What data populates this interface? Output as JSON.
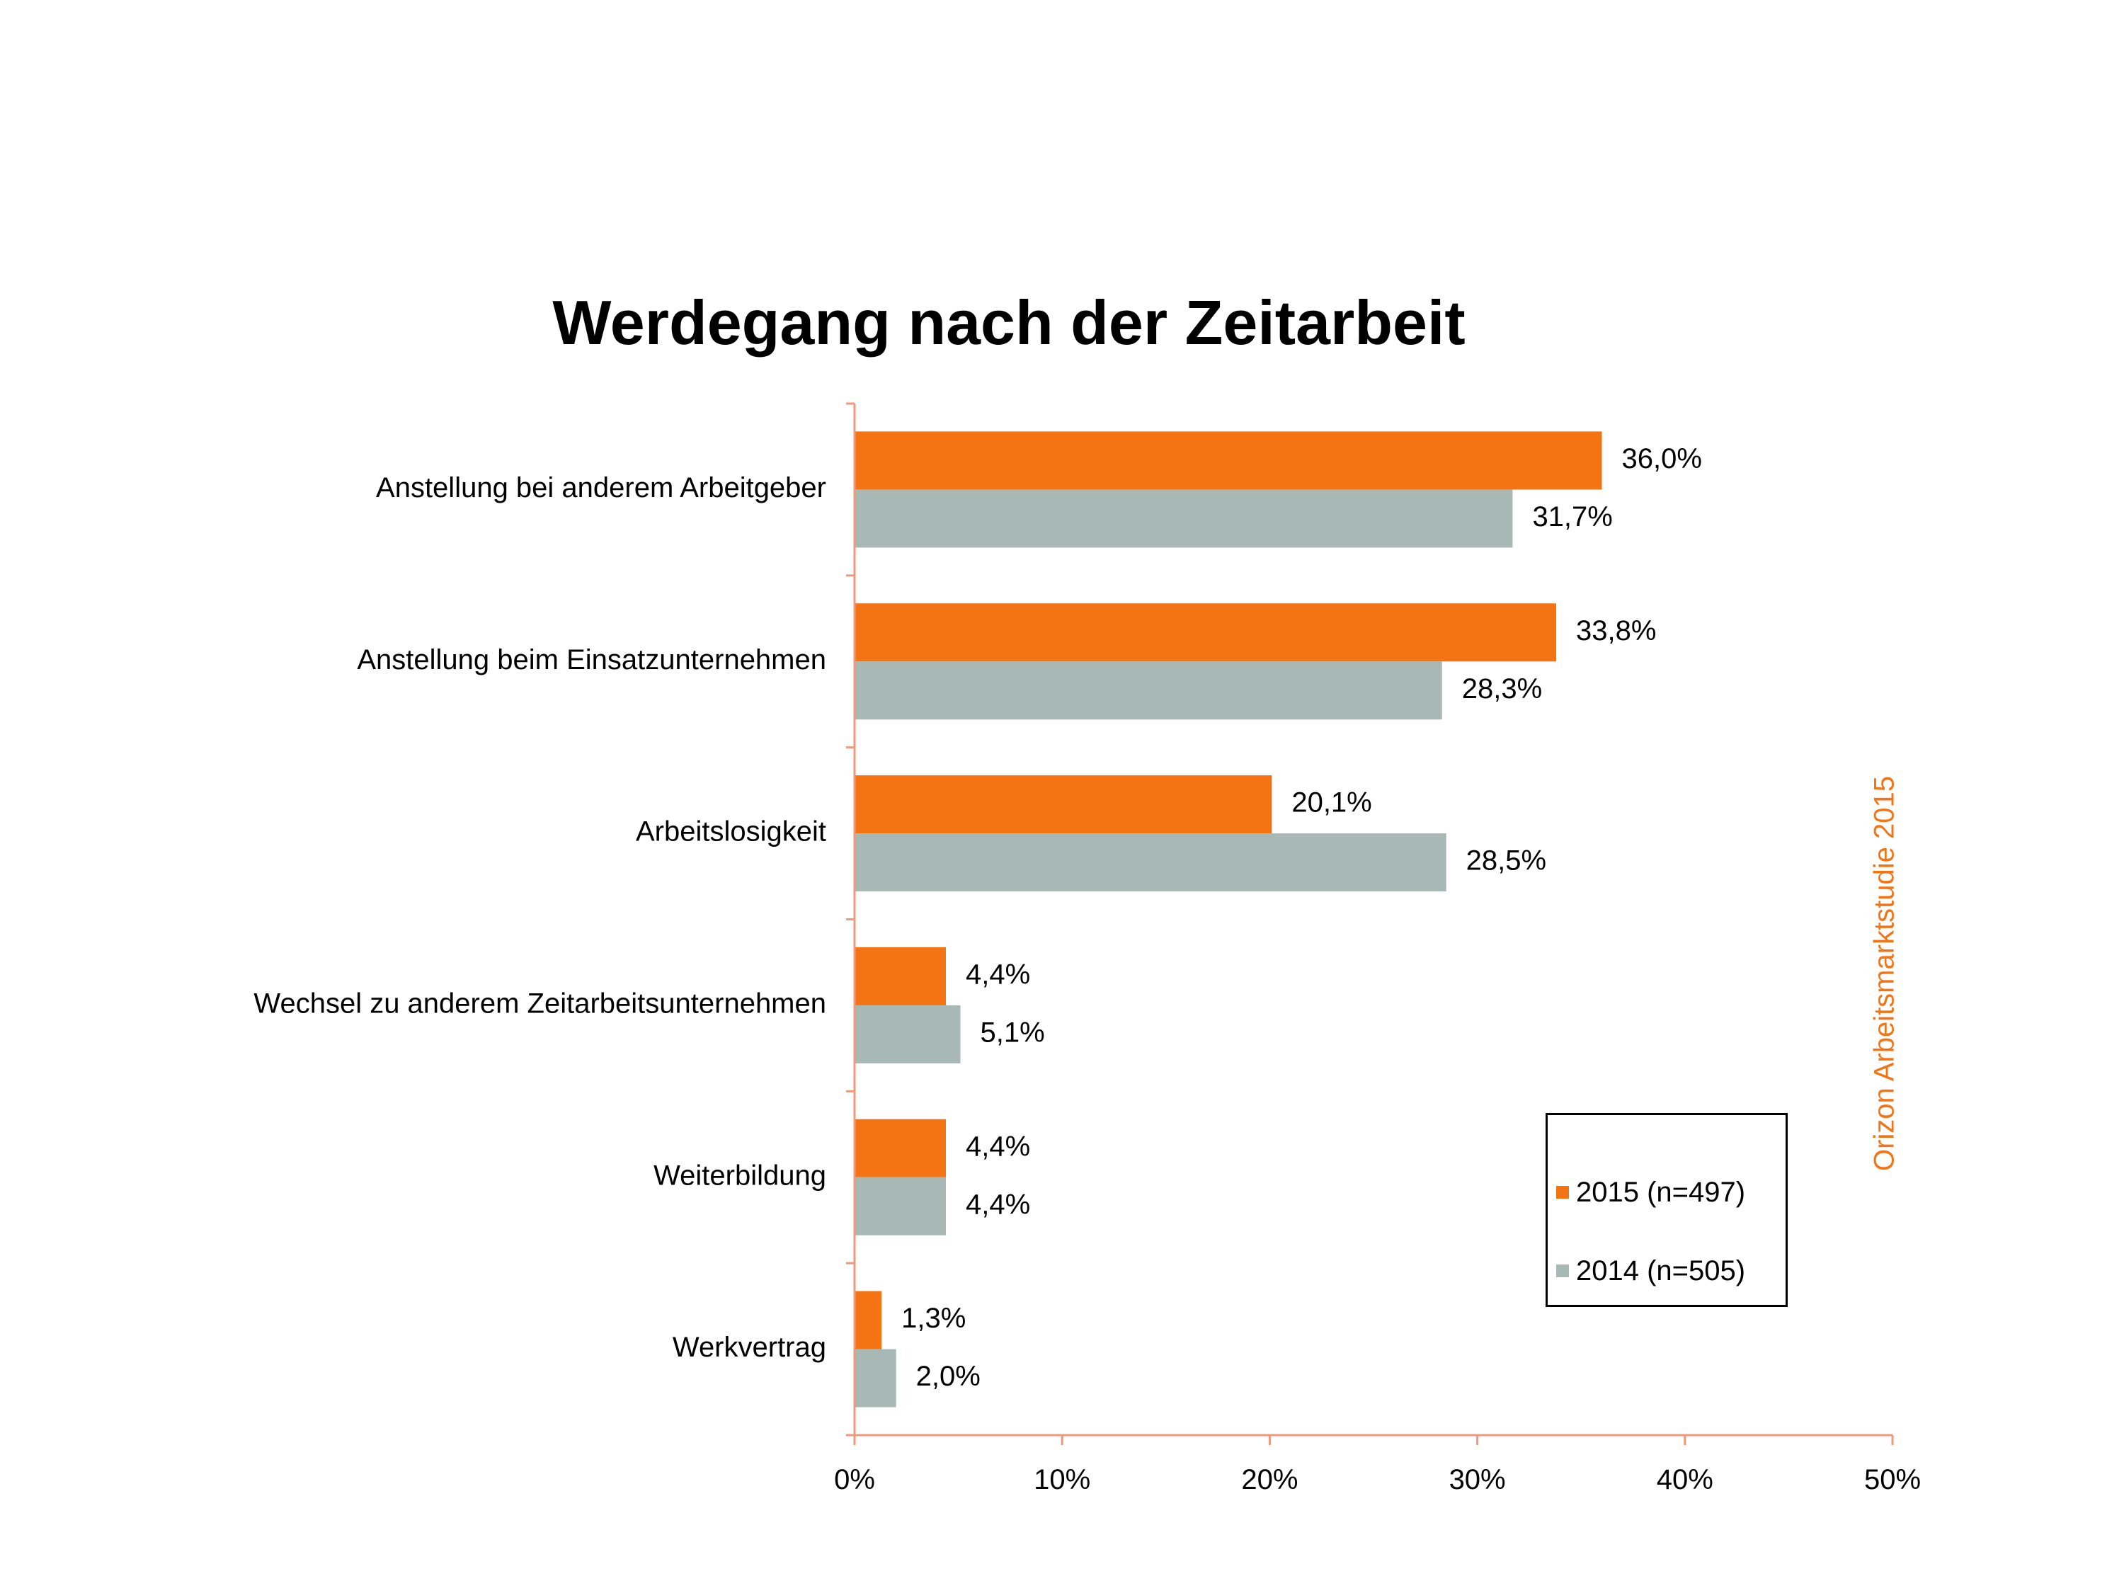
{
  "chart_data": {
    "type": "bar",
    "orientation": "horizontal",
    "title": "Werdegang nach der Zeitarbeit",
    "categories": [
      "Anstellung bei anderem Arbeitgeber",
      "Anstellung beim Einsatzunternehmen",
      "Arbeitslosigkeit",
      "Wechsel zu anderem Zeitarbeitsunternehmen",
      "Weiterbildung",
      "Werkvertrag"
    ],
    "series": [
      {
        "name": "2015 (n=497)",
        "color": "#f47414",
        "values": [
          36.0,
          33.8,
          20.1,
          4.4,
          4.4,
          1.3
        ],
        "labels": [
          "36,0%",
          "33,8%",
          "20,1%",
          "4,4%",
          "4,4%",
          "1,3%"
        ]
      },
      {
        "name": "2014 (n=505)",
        "color": "#a7b8b5",
        "values": [
          31.7,
          28.3,
          28.5,
          5.1,
          4.4,
          2.0
        ],
        "labels": [
          "31,7%",
          "28,3%",
          "28,5%",
          "5,1%",
          "4,4%",
          "2,0%"
        ]
      }
    ],
    "xlim": [
      0,
      50
    ],
    "xticks": [
      0,
      10,
      20,
      30,
      40,
      50
    ],
    "xtick_labels": [
      "0%",
      "10%",
      "20%",
      "30%",
      "40%",
      "50%"
    ],
    "xlabel": "",
    "ylabel": "",
    "grid": false,
    "legend_position": "bottom-right",
    "axis_color": "#f0997a"
  },
  "credit": "Orizon Arbeitsmarktstudie 2015"
}
